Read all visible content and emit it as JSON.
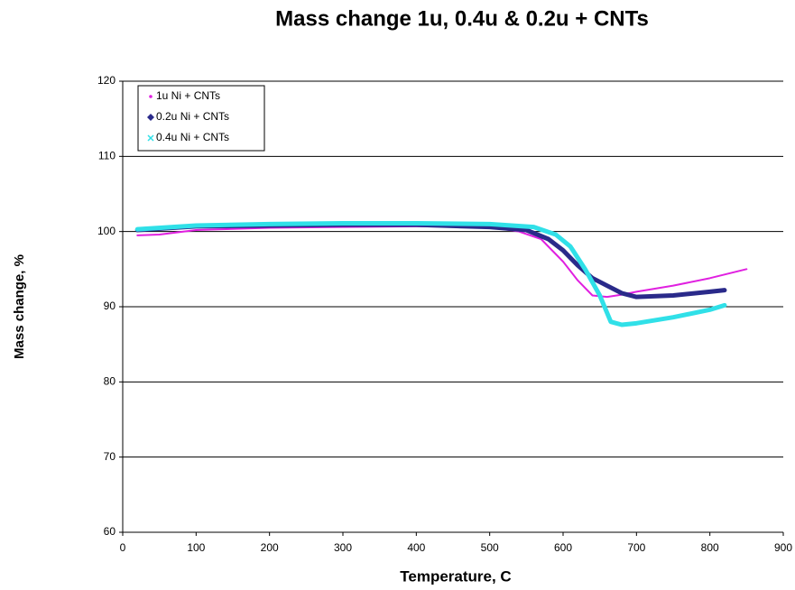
{
  "chart_data": {
    "type": "line",
    "title": "Mass change 1u, 0.4u &  0.2u + CNTs",
    "x_label": "Temperature, C",
    "y_label": "Mass change, %",
    "xlim": [
      0,
      900
    ],
    "xticks": [
      0,
      100,
      200,
      300,
      400,
      500,
      600,
      700,
      800,
      900
    ],
    "ylim": [
      60,
      120
    ],
    "yticks": [
      60,
      70,
      80,
      90,
      100,
      110,
      120
    ],
    "grid": true,
    "legend": "upper-left",
    "series": [
      {
        "name": "1u Ni + CNTs",
        "color": "#e020e0",
        "marker": "dot",
        "x": [
          20,
          50,
          100,
          200,
          300,
          400,
          500,
          540,
          570,
          600,
          620,
          640,
          660,
          680,
          700,
          750,
          800,
          850
        ],
        "values": [
          99.5,
          99.6,
          100.2,
          100.5,
          100.6,
          100.7,
          100.6,
          100,
          99,
          96,
          93.5,
          91.5,
          91.3,
          91.6,
          92,
          92.8,
          93.8,
          95
        ]
      },
      {
        "name": "0.2u Ni + CNTs",
        "color": "#2a2a8a",
        "marker": "diamond",
        "x": [
          20,
          100,
          200,
          300,
          400,
          500,
          550,
          580,
          600,
          620,
          640,
          660,
          680,
          700,
          750,
          800,
          820
        ],
        "values": [
          100.2,
          100.7,
          100.8,
          100.9,
          100.9,
          100.6,
          100.2,
          99,
          97.5,
          95.5,
          93.8,
          92.8,
          91.8,
          91.3,
          91.5,
          92,
          92.2
        ]
      },
      {
        "name": "0.4u Ni + CNTs",
        "color": "#30e0e8",
        "marker": "x",
        "x": [
          20,
          100,
          200,
          300,
          400,
          500,
          560,
          590,
          610,
          630,
          650,
          665,
          680,
          700,
          750,
          800,
          820
        ],
        "values": [
          100.3,
          100.8,
          101,
          101.1,
          101.1,
          101,
          100.6,
          99.6,
          98,
          95,
          91.5,
          88,
          87.6,
          87.8,
          88.6,
          89.6,
          90.2
        ]
      }
    ]
  }
}
